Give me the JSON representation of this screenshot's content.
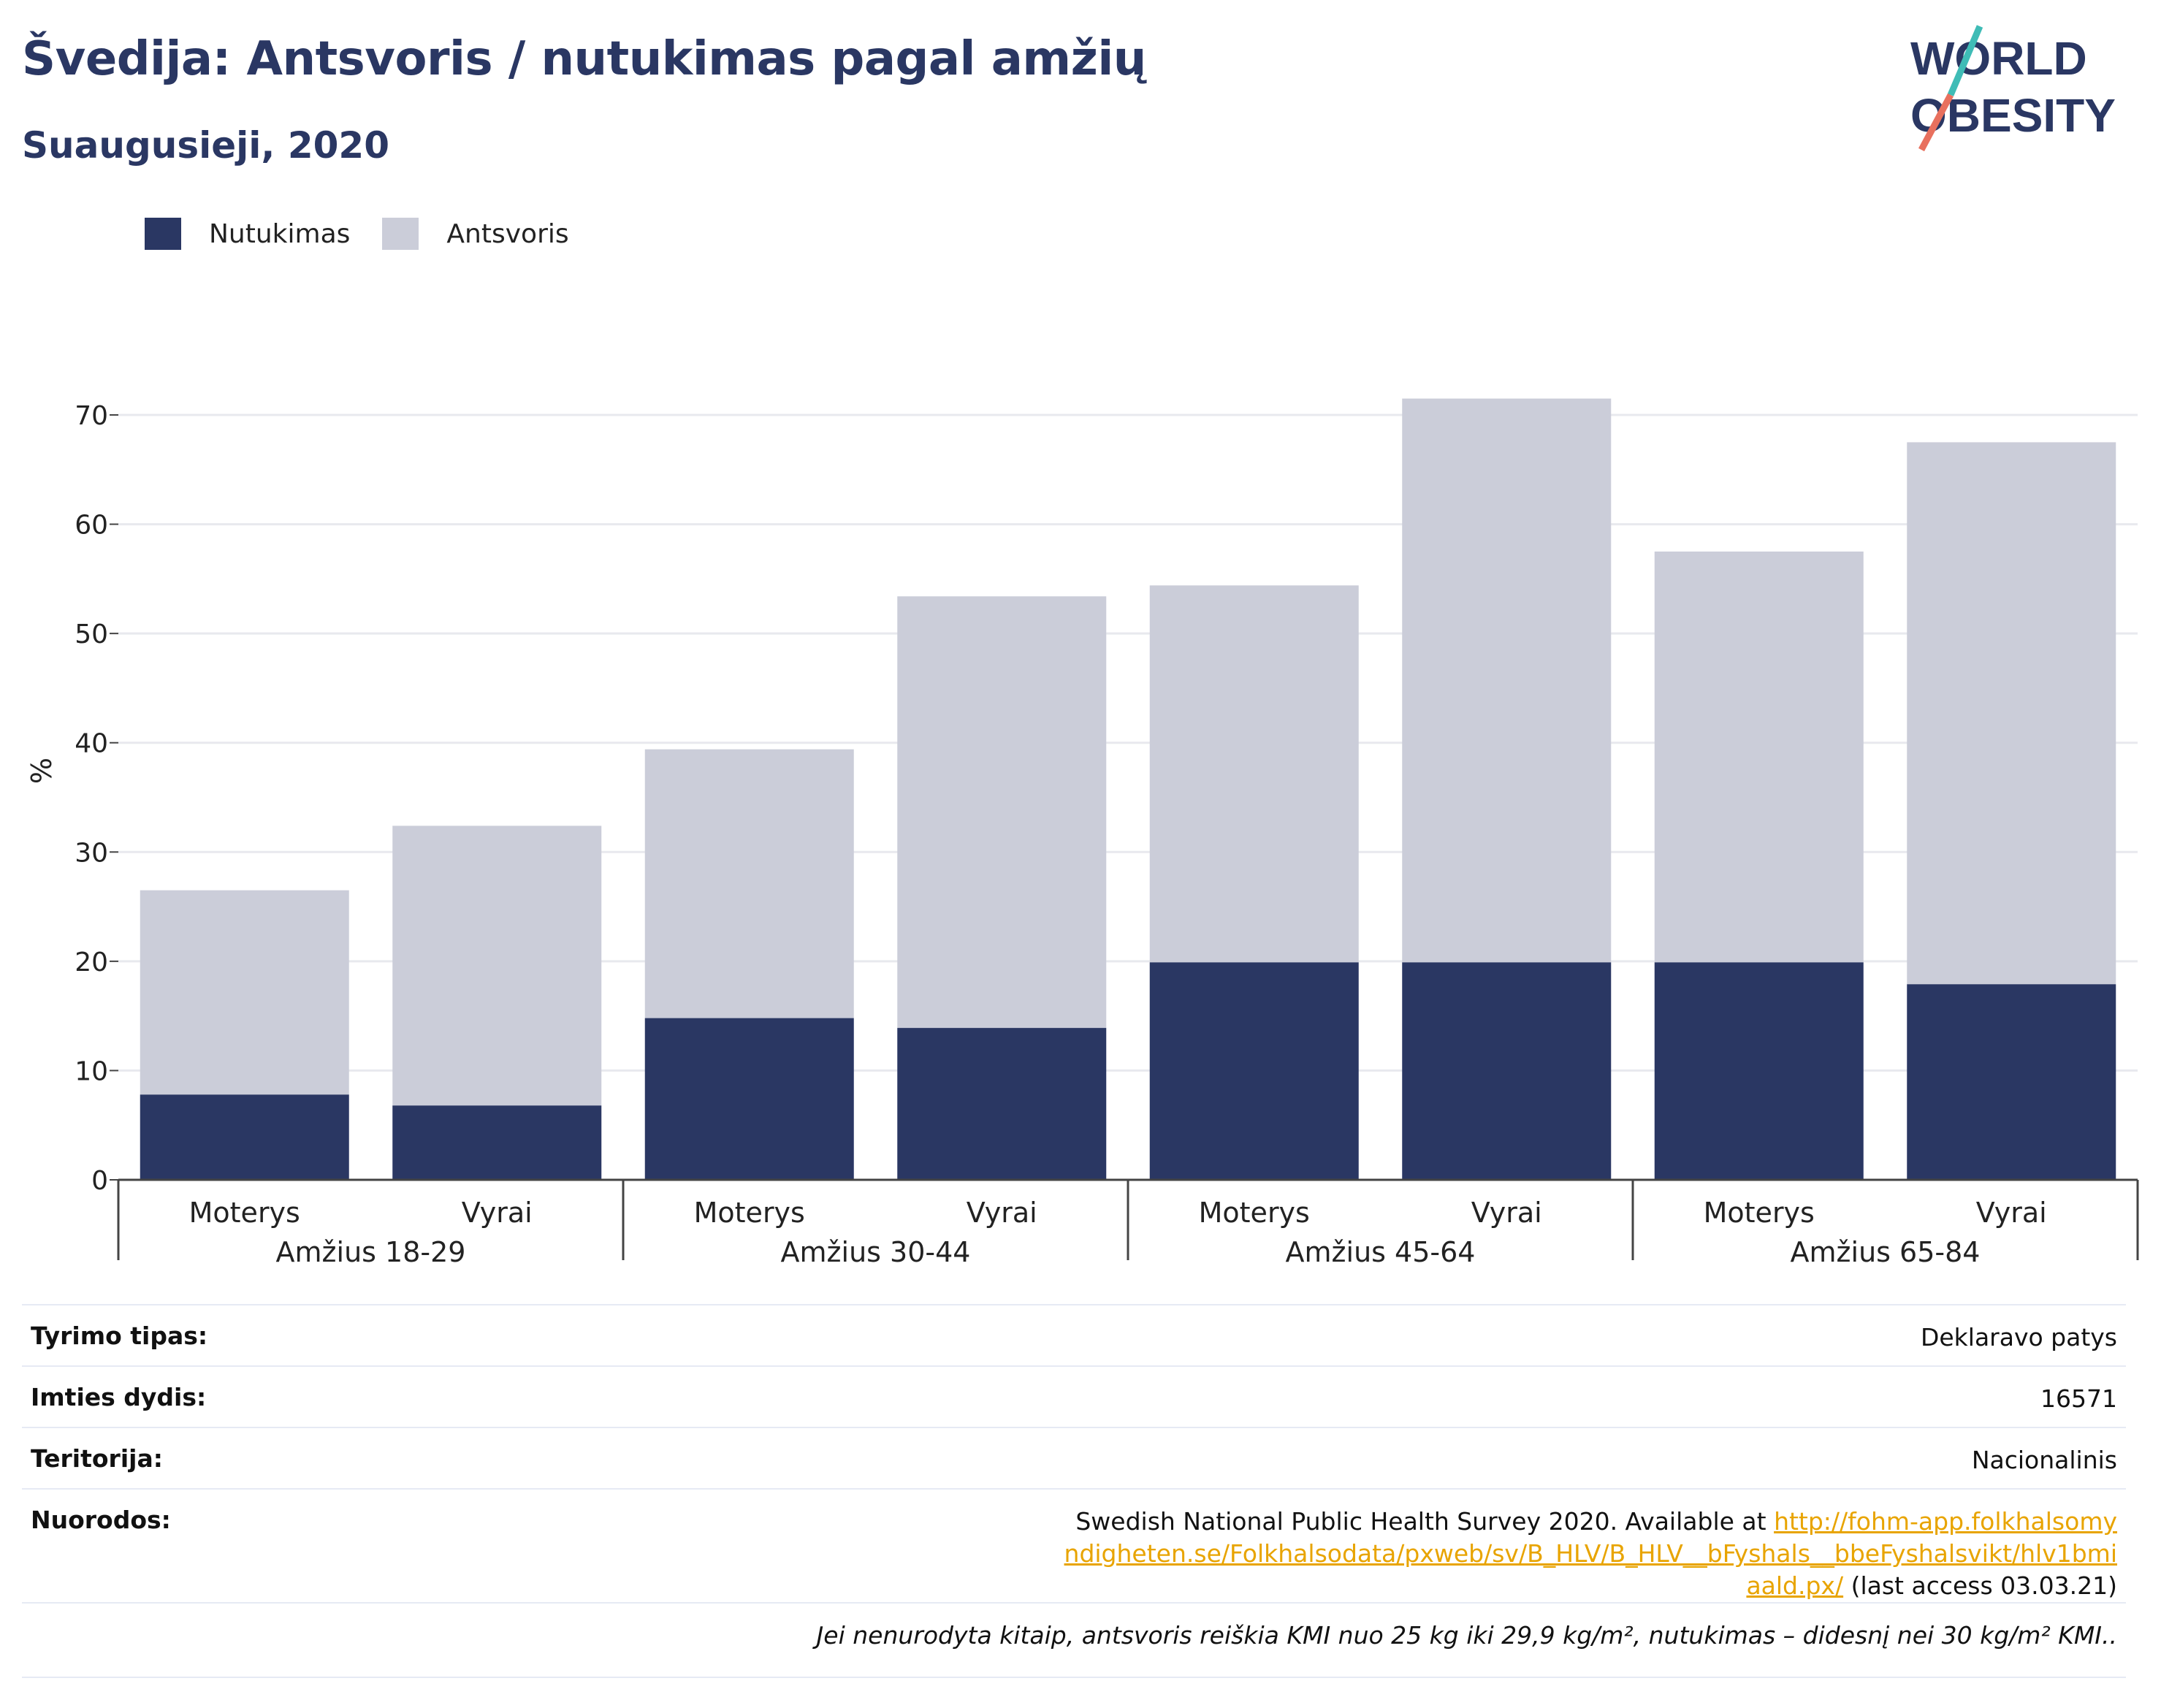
{
  "header": {
    "title": "Švedija: Antsvoris / nutukimas pagal amžių",
    "subtitle": "Suaugusieji, 2020"
  },
  "logo": {
    "line1": "WORLD",
    "line2": "OBESITY"
  },
  "legend": [
    {
      "label": "Nutukimas",
      "color": "#2a3763"
    },
    {
      "label": "Antsvoris",
      "color": "#cbcdd9"
    }
  ],
  "chart_data": {
    "type": "bar",
    "stacked": true,
    "ylabel": "%",
    "ylim": [
      0,
      70
    ],
    "yticks": [
      0,
      10,
      20,
      30,
      40,
      50,
      60,
      70
    ],
    "grid": true,
    "legend_position": "top-left",
    "groups": [
      "Amžius 18-29",
      "Amžius 30-44",
      "Amžius 45-64",
      "Amžius 65-84"
    ],
    "categories": [
      "Moterys",
      "Vyrai",
      "Moterys",
      "Vyrai",
      "Moterys",
      "Vyrai",
      "Moterys",
      "Vyrai"
    ],
    "series": [
      {
        "name": "Nutukimas",
        "color": "#2a3763",
        "values": [
          7.8,
          6.8,
          14.8,
          13.9,
          19.9,
          19.9,
          19.9,
          17.9
        ]
      },
      {
        "name": "Antsvoris",
        "color": "#cbcdd9",
        "values": [
          18.7,
          25.6,
          24.6,
          39.5,
          34.5,
          51.6,
          37.6,
          49.6
        ]
      }
    ]
  },
  "info": {
    "rows": [
      {
        "label": "Tyrimo tipas:",
        "value": "Deklaravo patys"
      },
      {
        "label": "Imties dydis:",
        "value": "16571"
      },
      {
        "label": "Teritorija:",
        "value": "Nacionalinis"
      }
    ],
    "references": {
      "label": "Nuorodos:",
      "text_before": "Swedish National Public Health Survey 2020. Available at ",
      "link": "http://fohm-app.folkhalsomyndigheten.se/Folkhalsodata/pxweb/sv/B_HLV/B_HLV__bFyshals__bbeFyshalsvikt/hlv1bmiaald.px/",
      "text_after": " (last access 03.03.21)"
    },
    "note": "Jei nenurodyta kitaip, antsvoris reiškia KMI nuo 25 kg iki 29,9 kg/m², nutukimas – didesnį nei 30 kg/m² KMI.."
  }
}
